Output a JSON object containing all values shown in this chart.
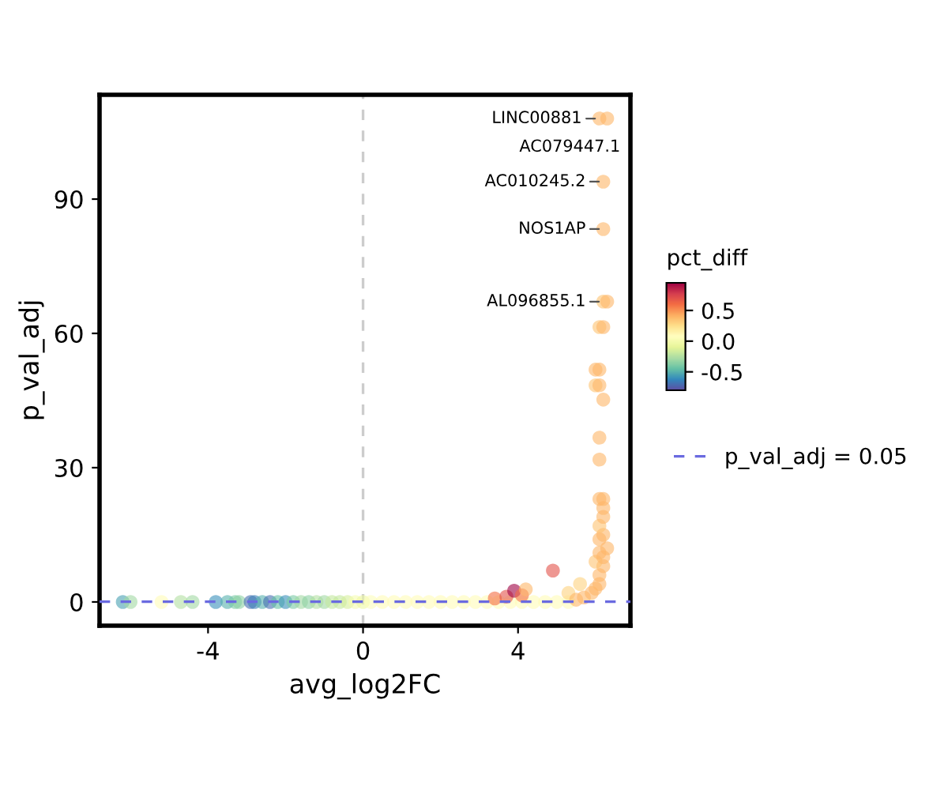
{
  "chart_data": {
    "type": "scatter",
    "xlabel": "avg_log2FC",
    "ylabel": "p_val_adj",
    "clabel": "pct_diff",
    "x": [
      -6.2,
      -6.0,
      -5.2,
      -4.7,
      -4.4,
      -3.8,
      -3.5,
      -3.3,
      -3.2,
      -2.9,
      -2.8,
      -2.6,
      -2.4,
      -2.2,
      -2.0,
      -1.8,
      -1.6,
      -1.4,
      -1.2,
      -1.0,
      -0.8,
      -0.6,
      -0.4,
      -0.2,
      0.0,
      0.2,
      0.5,
      0.8,
      1.1,
      1.4,
      1.7,
      2.0,
      2.3,
      2.6,
      2.9,
      3.2,
      3.5,
      3.8,
      4.1,
      4.4,
      4.7,
      5.0,
      5.3,
      3.4,
      3.7,
      3.9,
      4.1,
      4.2,
      4.9,
      5.3,
      5.5,
      5.6,
      5.7,
      5.9,
      6.0,
      6.1,
      6.1,
      6.2,
      6.0,
      6.2,
      6.1,
      6.3,
      6.1,
      6.2,
      6.1,
      6.2,
      6.2,
      6.1,
      6.2,
      6.1,
      6.1,
      6.2,
      6.0,
      6.1,
      6.0,
      6.1,
      6.1,
      6.2,
      6.2,
      6.3,
      6.2,
      6.2,
      6.1,
      6.3
    ],
    "values": [
      0,
      0,
      0,
      0,
      0,
      0,
      0,
      0,
      0,
      0,
      0,
      0,
      0,
      0,
      0,
      0,
      0,
      0,
      0,
      0,
      0,
      0,
      0,
      0,
      0,
      0,
      0,
      0,
      0,
      0,
      0,
      0,
      0,
      0,
      0,
      0,
      0,
      0,
      0,
      0,
      0,
      0,
      0,
      0.8,
      1.2,
      2.5,
      1.5,
      2.8,
      7,
      2,
      0.5,
      4,
      1,
      2,
      3,
      4,
      6,
      8,
      9,
      10,
      11,
      12,
      14,
      15,
      17,
      19,
      21,
      23,
      23,
      31.8,
      36.7,
      45.2,
      48.4,
      48.4,
      51.9,
      51.9,
      61.4,
      61.4,
      67.1,
      67.1,
      83.3,
      93.9,
      108,
      108
    ],
    "cvalues": [
      -0.55,
      -0.3,
      0.1,
      -0.25,
      -0.3,
      -0.6,
      -0.5,
      -0.4,
      -0.35,
      -0.7,
      -0.65,
      -0.5,
      -0.7,
      -0.45,
      -0.6,
      -0.4,
      -0.3,
      -0.35,
      -0.25,
      -0.3,
      -0.2,
      -0.2,
      -0.15,
      0.0,
      -0.05,
      0.05,
      0.1,
      0.1,
      0.1,
      0.1,
      0.1,
      0.1,
      0.1,
      0.1,
      0.1,
      0.1,
      0.1,
      0.1,
      0.1,
      0.1,
      0.1,
      0.1,
      0.1,
      0.6,
      0.7,
      0.95,
      0.6,
      0.4,
      0.7,
      0.3,
      0.4,
      0.3,
      0.4,
      0.4,
      0.4,
      0.4,
      0.4,
      0.4,
      0.35,
      0.4,
      0.4,
      0.4,
      0.4,
      0.4,
      0.35,
      0.4,
      0.4,
      0.4,
      0.4,
      0.4,
      0.4,
      0.4,
      0.35,
      0.4,
      0.4,
      0.4,
      0.35,
      0.4,
      0.35,
      0.4,
      0.4,
      0.4,
      0.4,
      0.4
    ],
    "clim": [
      -0.8,
      0.95
    ],
    "cticks": [
      {
        "value": 0.5,
        "label": "0.5"
      },
      {
        "value": 0.0,
        "label": "0.0"
      },
      {
        "value": -0.5,
        "label": "-0.5"
      }
    ],
    "xlim": [
      -6.8,
      6.9
    ],
    "ylim": [
      -5.3,
      113.3
    ],
    "xticks": [
      -4,
      0,
      4
    ],
    "yticks": [
      0,
      30,
      60,
      90
    ],
    "ref_lines": [
      {
        "axis": "y",
        "value": 0.05,
        "label": "p_val_adj = 0.05",
        "color": "#6a6ae0",
        "line_style": "dashed"
      },
      {
        "axis": "x",
        "value": 0,
        "label": null,
        "color": "#cccccc",
        "line_style": "dashed"
      }
    ],
    "annotations": [
      {
        "text": "LINC00881",
        "x": 6.1,
        "y": 108
      },
      {
        "text": "AC079447.1",
        "x": 6.3,
        "y": 108
      },
      {
        "text": "AC010245.2",
        "x": 6.2,
        "y": 93.9
      },
      {
        "text": "NOS1AP",
        "x": 6.2,
        "y": 83.3
      },
      {
        "text": "AL096855.1",
        "x": 6.2,
        "y": 67.1
      }
    ],
    "legend": "right",
    "grid": false
  }
}
